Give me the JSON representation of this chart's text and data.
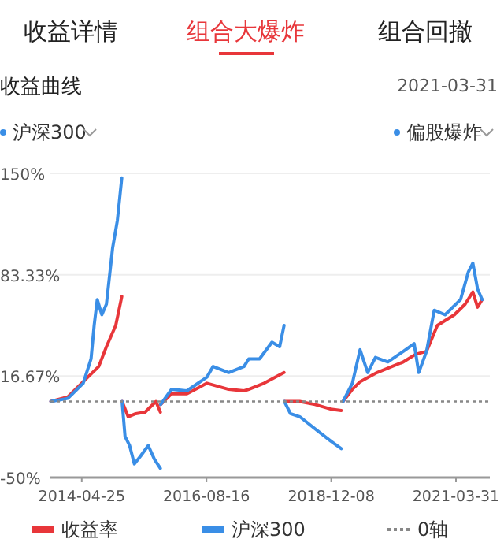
{
  "chart_data": {
    "type": "line",
    "title": "收益曲线",
    "annotations": [
      "收益详情",
      "组合大爆炸",
      "组合回撤",
      "2021-03-31",
      "沪深300",
      "偏股爆炸"
    ],
    "xlim": [
      "2013-09-25",
      "2021-11-15"
    ],
    "xticks": [
      "2014-04-25",
      "2016-08-16",
      "2018-12-08",
      "2021-03-31"
    ],
    "ylim": [
      -50,
      150
    ],
    "yticks": [
      {
        "value": -50,
        "label": "-50%"
      },
      {
        "value": 16.67,
        "label": "16.67%"
      },
      {
        "value": 83.33,
        "label": "83.33%"
      },
      {
        "value": 150,
        "label": "150%"
      }
    ],
    "grid": "y",
    "legend": "bottom",
    "ref_lines": [
      {
        "axis": "y",
        "value": 0,
        "label": "0轴",
        "color": "#888888",
        "line_style": "dotted"
      }
    ],
    "series": [
      {
        "name": "收益率",
        "color": "#e8363a",
        "x": [
          "2013-09-28",
          "2014-01-21",
          "2014-05-05",
          "2014-08-18",
          "2014-10-09",
          "2014-12-11",
          "2015-01-21",
          null,
          "2015-01-23",
          "2015-03-05",
          "2015-04-26",
          "2015-06-28",
          "2015-09-09",
          "2015-10-09",
          null,
          "2015-10-11",
          "2015-12-23",
          "2016-04-05",
          "2016-08-19",
          "2017-01-13",
          "2017-04-27",
          "2017-05-29",
          "2017-09-10",
          "2018-01-23",
          null,
          "2018-01-25",
          "2018-05-09",
          "2018-08-21",
          "2018-12-04",
          "2019-02-14",
          null,
          "2019-02-26",
          "2019-04-30",
          "2019-06-21",
          "2019-10-14",
          "2020-04-09",
          "2020-07-01",
          "2020-09-13",
          "2020-11-25",
          "2021-03-20",
          "2021-06-01",
          "2021-07-23",
          "2021-08-24",
          "2021-09-24"
        ],
        "values": [
          0,
          3,
          13,
          23,
          36,
          50,
          69,
          null,
          0,
          -10,
          -8,
          -7,
          0,
          -7,
          null,
          -2,
          5,
          5,
          12,
          8,
          7,
          8,
          12,
          19,
          null,
          0,
          0,
          -2,
          -5,
          -6,
          null,
          0,
          8,
          13,
          19,
          26,
          31,
          33,
          50,
          57,
          64,
          72,
          62,
          67
        ]
      },
      {
        "name": "沪深300",
        "color": "#3a8ee6",
        "x": [
          "2013-09-28",
          "2014-01-21",
          "2014-05-05",
          "2014-06-27",
          "2014-07-18",
          "2014-08-08",
          "2014-09-08",
          "2014-10-09",
          "2014-11-20",
          "2014-12-22",
          "2015-01-21",
          null,
          "2015-01-23",
          "2015-02-12",
          "2015-03-15",
          "2015-04-16",
          "2015-05-27",
          "2015-07-19",
          "2015-08-30",
          "2015-10-09",
          null,
          "2015-10-11",
          "2015-12-23",
          "2016-04-05",
          "2016-08-19",
          "2016-09-30",
          "2017-01-13",
          "2017-04-27",
          "2017-05-29",
          "2017-08-10",
          "2017-11-02",
          "2017-12-24",
          "2018-01-23",
          null,
          "2018-01-25",
          "2018-03-07",
          "2018-05-09",
          "2018-08-21",
          "2018-12-04",
          "2019-02-14",
          null,
          "2019-02-26",
          "2019-04-30",
          "2019-06-21",
          "2019-08-12",
          "2019-10-03",
          "2019-12-26",
          "2020-04-09",
          "2020-06-21",
          "2020-07-22",
          "2020-09-13",
          "2020-11-04",
          "2021-01-16",
          "2021-05-01",
          "2021-06-22",
          "2021-07-23",
          "2021-08-24",
          "2021-09-24"
        ],
        "values": [
          0,
          2,
          12,
          28,
          50,
          67,
          57,
          64,
          101,
          119,
          147,
          null,
          0,
          -23,
          -29,
          -41,
          -36,
          -29,
          -38,
          -44,
          null,
          -2,
          8,
          7,
          16,
          23,
          19,
          23,
          28,
          28,
          39,
          36,
          50,
          null,
          0,
          -8,
          -10,
          -18,
          -26,
          -31,
          null,
          0,
          12,
          34,
          19,
          29,
          26,
          33,
          38,
          19,
          33,
          60,
          57,
          67,
          85,
          91,
          74,
          67
        ]
      }
    ]
  }
}
